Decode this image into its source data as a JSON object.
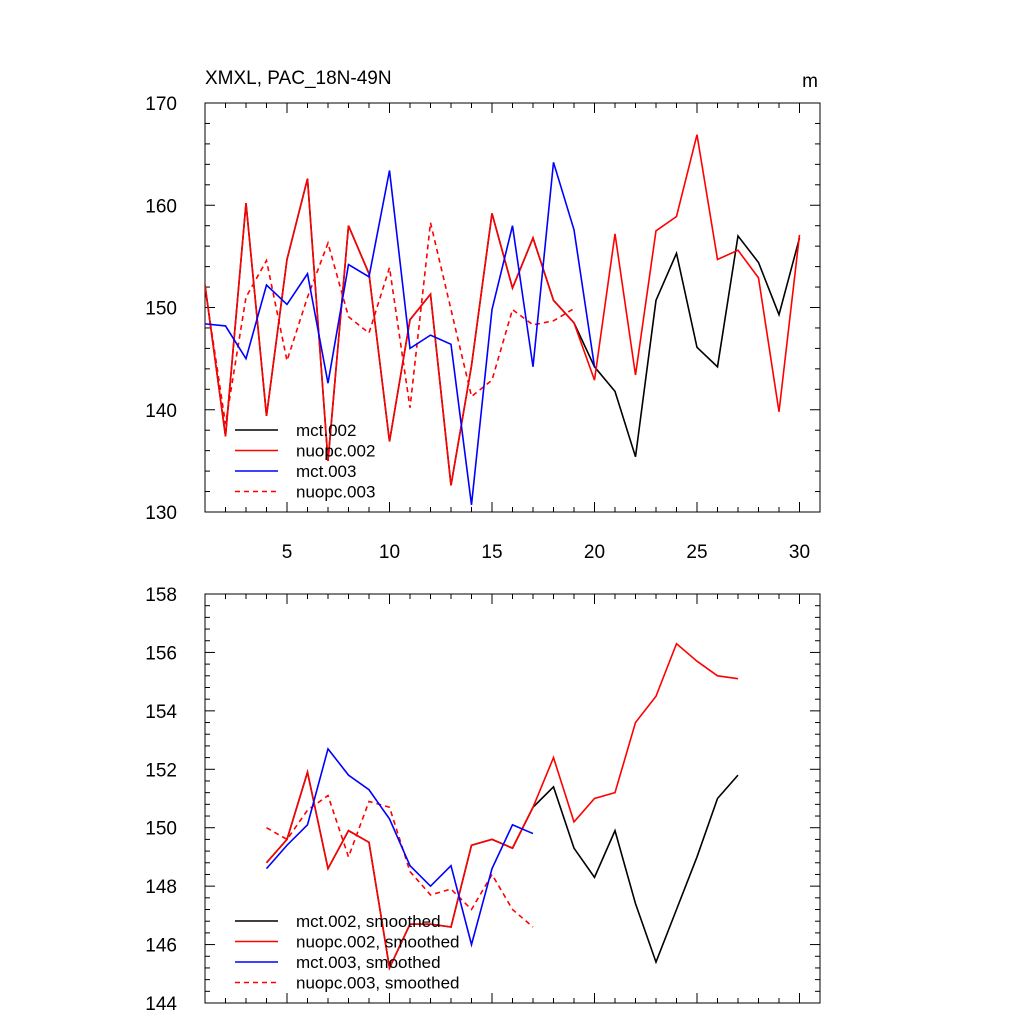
{
  "chart_data": [
    {
      "type": "line",
      "title": "XMXL, PAC_18N-49N",
      "units": "m",
      "xlim": [
        1,
        31
      ],
      "ylim": [
        130,
        170
      ],
      "xticks": [
        5,
        10,
        15,
        20,
        25,
        30
      ],
      "yticks": [
        130,
        140,
        150,
        160,
        170
      ],
      "series": [
        {
          "name": "mct.002",
          "color": "#000000",
          "dash": "solid",
          "x": [
            1,
            2,
            3,
            4,
            5,
            6,
            7,
            8,
            9,
            10,
            11,
            12,
            13,
            14,
            15,
            16,
            17,
            18,
            19,
            20,
            21,
            22,
            23,
            24,
            25,
            26,
            27,
            28,
            29,
            30,
            31
          ],
          "y": [
            152.2,
            137.4,
            160.2,
            139.4,
            154.7,
            162.6,
            135.0,
            158.0,
            153.3,
            136.9,
            148.8,
            151.3,
            132.6,
            144.3,
            159.2,
            151.9,
            156.8,
            150.7,
            148.5,
            144.2,
            141.8,
            135.4,
            150.7,
            155.3,
            146.1,
            144.2,
            157.0,
            154.4,
            149.3,
            156.8,
            null
          ]
        },
        {
          "name": "nuopc.002",
          "color": "#ff0000",
          "dash": "solid",
          "x": [
            1,
            2,
            3,
            4,
            5,
            6,
            7,
            8,
            9,
            10,
            11,
            12,
            13,
            14,
            15,
            16,
            17,
            18,
            19,
            20,
            21,
            22,
            23,
            24,
            25,
            26,
            27,
            28,
            29,
            30,
            31
          ],
          "y": [
            152.2,
            137.4,
            160.2,
            139.4,
            154.7,
            162.6,
            135.0,
            158.0,
            153.3,
            136.9,
            148.8,
            151.3,
            132.6,
            144.3,
            159.2,
            151.9,
            156.8,
            150.7,
            148.5,
            142.9,
            157.2,
            143.4,
            157.5,
            158.9,
            166.9,
            154.7,
            155.6,
            152.9,
            139.8,
            157.1,
            null
          ]
        },
        {
          "name": "mct.003",
          "color": "#0000ff",
          "dash": "solid",
          "x": [
            1,
            2,
            3,
            4,
            5,
            6,
            7,
            8,
            9,
            10,
            11,
            12,
            13,
            14,
            15,
            16,
            17,
            18,
            19,
            20
          ],
          "y": [
            148.4,
            148.2,
            145.0,
            152.2,
            150.3,
            153.3,
            142.6,
            154.2,
            153.0,
            163.4,
            146.0,
            147.3,
            146.4,
            130.7,
            149.8,
            158.0,
            144.2,
            164.2,
            157.6,
            144.2
          ]
        },
        {
          "name": "nuopc.003",
          "color": "#ff0000",
          "dash": "dashed",
          "x": [
            1,
            2,
            3,
            4,
            5,
            6,
            7,
            8,
            9,
            10,
            11,
            12,
            13,
            14,
            15,
            16,
            17,
            18,
            19
          ],
          "y": [
            152.0,
            138.6,
            151.0,
            154.6,
            144.8,
            151.0,
            156.3,
            149.1,
            147.5,
            153.9,
            140.2,
            158.3,
            149.8,
            141.3,
            142.9,
            149.8,
            148.3,
            148.7,
            149.9
          ]
        }
      ],
      "legend": [
        "mct.002",
        "nuopc.002",
        "mct.003",
        "nuopc.003"
      ],
      "legend_position": "lower-left"
    },
    {
      "type": "line",
      "title": "",
      "xlim": [
        1,
        31
      ],
      "ylim": [
        144,
        158
      ],
      "xticks": [
        5,
        10,
        15,
        20,
        25,
        30
      ],
      "yticks": [
        144,
        146,
        148,
        150,
        152,
        154,
        156,
        158
      ],
      "series": [
        {
          "name": "mct.002, smoothed",
          "color": "#000000",
          "dash": "solid",
          "x": [
            4,
            5,
            6,
            7,
            8,
            9,
            10,
            11,
            12,
            13,
            14,
            15,
            16,
            17,
            18,
            19,
            20,
            21,
            22,
            23,
            24,
            25,
            26,
            27,
            28
          ],
          "y": [
            148.8,
            149.6,
            151.9,
            148.6,
            149.9,
            149.5,
            145.2,
            146.7,
            146.7,
            146.6,
            149.4,
            149.6,
            149.3,
            150.7,
            151.4,
            149.3,
            148.3,
            149.9,
            147.4,
            145.4,
            147.2,
            149.0,
            151.0,
            151.8,
            null
          ]
        },
        {
          "name": "nuopc.002, smoothed",
          "color": "#ff0000",
          "dash": "solid",
          "x": [
            4,
            5,
            6,
            7,
            8,
            9,
            10,
            11,
            12,
            13,
            14,
            15,
            16,
            17,
            18,
            19,
            20,
            21,
            22,
            23,
            24,
            25,
            26,
            27,
            28
          ],
          "y": [
            148.8,
            149.6,
            151.9,
            148.6,
            149.9,
            149.5,
            145.2,
            146.7,
            146.7,
            146.6,
            149.4,
            149.6,
            149.3,
            150.7,
            152.4,
            150.2,
            151.0,
            151.2,
            153.6,
            154.5,
            156.3,
            155.7,
            155.2,
            155.1,
            null
          ]
        },
        {
          "name": "mct.003, smoothed",
          "color": "#0000ff",
          "dash": "solid",
          "x": [
            4,
            5,
            6,
            7,
            8,
            9,
            10,
            11,
            12,
            13,
            14,
            15,
            16,
            17
          ],
          "y": [
            148.6,
            149.4,
            150.1,
            152.7,
            151.8,
            151.3,
            150.3,
            148.7,
            148.0,
            148.7,
            146.0,
            148.6,
            150.1,
            149.8
          ]
        },
        {
          "name": "nuopc.003, smoothed",
          "color": "#ff0000",
          "dash": "dashed",
          "x": [
            4,
            5,
            6,
            7,
            8,
            9,
            10,
            11,
            12,
            13,
            14,
            15,
            16,
            17
          ],
          "y": [
            150.0,
            149.6,
            150.6,
            151.1,
            149.0,
            150.9,
            150.7,
            148.5,
            147.7,
            147.9,
            147.2,
            148.4,
            147.2,
            146.6
          ]
        }
      ],
      "legend": [
        "mct.002, smoothed",
        "nuopc.002, smoothed",
        "mct.003, smoothed",
        "nuopc.003, smoothed"
      ],
      "legend_position": "lower-left"
    }
  ]
}
